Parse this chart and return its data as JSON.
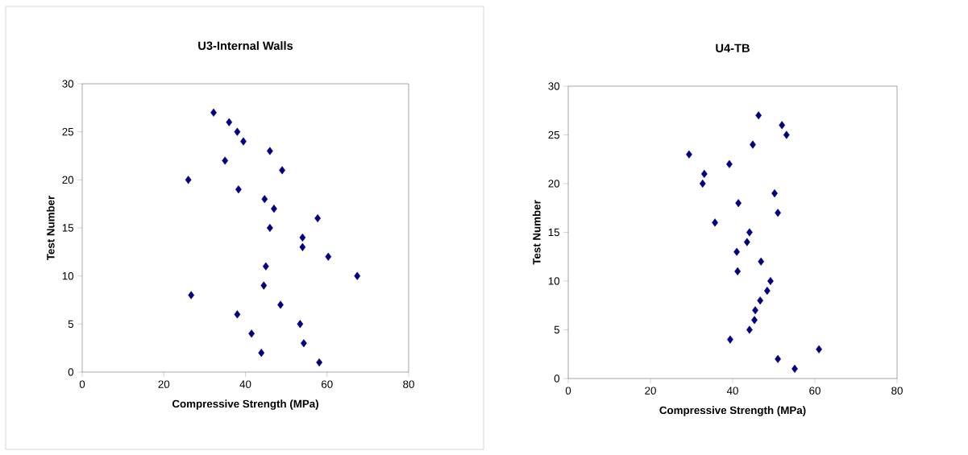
{
  "chart_data": [
    {
      "type": "scatter",
      "title": "U3-Internal Walls",
      "xlabel": "Compressive Strength (MPa)",
      "ylabel": "Test Number",
      "x": [
        58.1,
        43.9,
        54.3,
        41.5,
        53.4,
        38,
        48.6,
        26.7,
        44.5,
        67.4,
        45,
        60.3,
        54,
        54,
        46,
        57.7,
        47,
        44.7,
        38.3,
        26,
        49,
        35,
        46,
        39.5,
        38,
        36,
        32.2
      ],
      "values": [
        1,
        2,
        3,
        4,
        5,
        6,
        7,
        8,
        9,
        10,
        11,
        12,
        13,
        14,
        15,
        16,
        17,
        18,
        19,
        20,
        21,
        22,
        23,
        24,
        25,
        26,
        27
      ],
      "color": "#000080",
      "marker": "diamond",
      "xlim": [
        0,
        80
      ],
      "ylim": [
        0,
        30
      ],
      "xticks": [
        0,
        20,
        40,
        60,
        80
      ],
      "yticks": [
        0,
        5,
        10,
        15,
        20,
        25,
        30
      ]
    },
    {
      "type": "scatter",
      "title": "U4-TB",
      "xlabel": "Compressive Strength (MPa)",
      "ylabel": "Test Number",
      "x": [
        55.1,
        51,
        61,
        39.4,
        44.1,
        45.3,
        45.5,
        46.7,
        48.4,
        49.2,
        41.2,
        46.9,
        41,
        43.5,
        44.1,
        35.7,
        51,
        41.4,
        50.2,
        32.7,
        33.1,
        39.2,
        29.4,
        44.9,
        53.1,
        52,
        46.3
      ],
      "values": [
        1,
        2,
        3,
        4,
        5,
        6,
        7,
        8,
        9,
        10,
        11,
        12,
        13,
        14,
        15,
        16,
        17,
        18,
        19,
        20,
        21,
        22,
        23,
        24,
        25,
        26,
        27
      ],
      "color": "#000080",
      "marker": "diamond",
      "xlim": [
        0,
        80
      ],
      "ylim": [
        0,
        30
      ],
      "xticks": [
        0,
        20,
        40,
        60,
        80
      ],
      "yticks": [
        0,
        5,
        10,
        15,
        20,
        25,
        30
      ]
    }
  ]
}
